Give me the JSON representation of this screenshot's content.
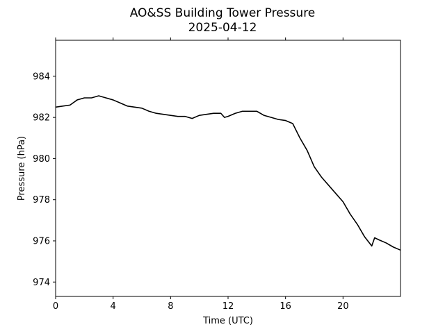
{
  "chart_data": {
    "type": "line",
    "title": "AO&SS Building Tower Pressure",
    "subtitle": "2025-04-12",
    "xlabel": "Time (UTC)",
    "ylabel": "Pressure (hPa)",
    "xlim": [
      0,
      24
    ],
    "ylim": [
      973.3,
      985.75
    ],
    "x_ticks": [
      0,
      4,
      8,
      12,
      16,
      20
    ],
    "x_tick_labels": [
      "0",
      "4",
      "8",
      "12",
      "16",
      "20"
    ],
    "y_ticks": [
      974,
      976,
      978,
      980,
      982,
      984
    ],
    "y_tick_labels": [
      "974",
      "976",
      "978",
      "980",
      "982",
      "984"
    ],
    "grid": false,
    "legend": "none",
    "line_color": "#000000",
    "series": [
      {
        "x": [
          0,
          0.5,
          1.0,
          1.5,
          2.0,
          2.5,
          3.0,
          3.5,
          4.0,
          4.5,
          5.0,
          5.5,
          6.0,
          6.5,
          7.0,
          7.5,
          8.0,
          8.5,
          9.0,
          9.5,
          10.0,
          10.5,
          11.0,
          11.5,
          11.75,
          12.0,
          12.5,
          13.0,
          13.5,
          14.0,
          14.5,
          15.0,
          15.5,
          16.0,
          16.5,
          17.0,
          17.5,
          18.0,
          18.5,
          19.0,
          19.5,
          20.0,
          20.5,
          21.0,
          21.5,
          22.0,
          22.2,
          22.5,
          23.0,
          23.5,
          24.0
        ],
        "values": [
          982.5,
          982.55,
          982.6,
          982.85,
          982.95,
          982.95,
          983.05,
          982.95,
          982.85,
          982.7,
          982.55,
          982.5,
          982.45,
          982.3,
          982.2,
          982.15,
          982.1,
          982.05,
          982.05,
          981.95,
          982.1,
          982.15,
          982.2,
          982.2,
          982.0,
          982.05,
          982.2,
          982.3,
          982.3,
          982.3,
          982.1,
          982.0,
          981.9,
          981.85,
          981.7,
          981.0,
          980.4,
          979.6,
          979.1,
          978.7,
          978.3,
          977.9,
          977.3,
          976.8,
          976.2,
          975.75,
          976.15,
          976.05,
          975.9,
          975.7,
          975.55
        ]
      }
    ]
  }
}
